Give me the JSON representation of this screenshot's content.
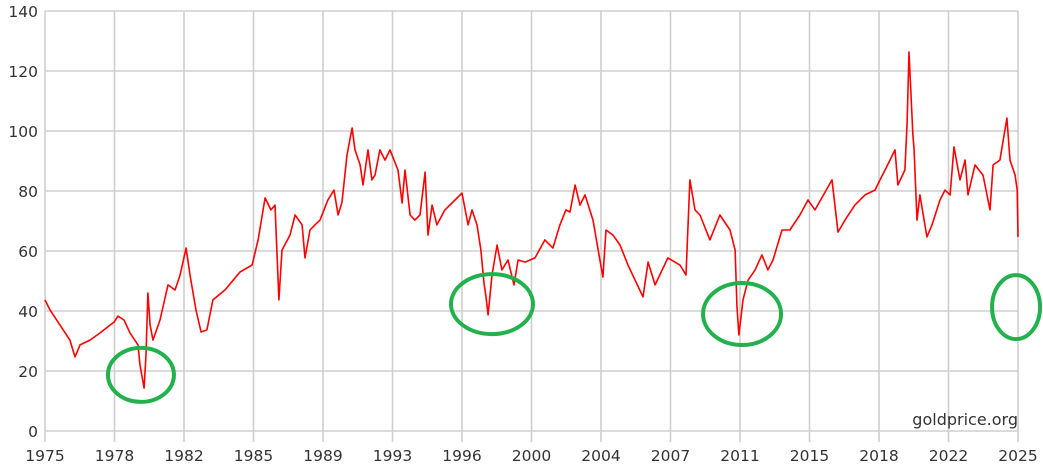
{
  "chart_data": {
    "type": "line",
    "title": "",
    "xlabel": "",
    "ylabel": "",
    "xlim": [
      1975,
      2025
    ],
    "ylim": [
      0,
      140
    ],
    "grid": true,
    "legend": "none",
    "x_tick_labels": [
      "1975",
      "1978",
      "1982",
      "1985",
      "1989",
      "1993",
      "1996",
      "2000",
      "2004",
      "2007",
      "2011",
      "2015",
      "2018",
      "2022",
      "2025"
    ],
    "y_ticks": [
      0,
      20,
      40,
      60,
      80,
      100,
      120,
      140
    ],
    "y_tick_labels": [
      "0",
      "20",
      "40",
      "60",
      "80",
      "100",
      "120",
      "140"
    ],
    "watermark": "goldprice.org",
    "colors": {
      "line": "#ff0000",
      "highlight": "#22b14c",
      "grid": "#cfcfcf"
    },
    "series": [
      {
        "color": "#ff0000",
        "points": [
          [
            1975.0,
            43.7
          ],
          [
            1975.26,
            40.3
          ],
          [
            1975.77,
            35.3
          ],
          [
            1976.28,
            30.3
          ],
          [
            1976.54,
            24.7
          ],
          [
            1976.8,
            28.7
          ],
          [
            1977.31,
            30.3
          ],
          [
            1977.83,
            32.7
          ],
          [
            1978.34,
            35.3
          ],
          [
            1978.55,
            36.3
          ],
          [
            1978.75,
            38.3
          ],
          [
            1979.06,
            37
          ],
          [
            1979.37,
            32.7
          ],
          [
            1979.78,
            28.7
          ],
          [
            1979.88,
            22
          ],
          [
            1980.09,
            14.3
          ],
          [
            1980.19,
            25.3
          ],
          [
            1980.29,
            46
          ],
          [
            1980.4,
            35.3
          ],
          [
            1980.55,
            30.3
          ],
          [
            1980.91,
            37
          ],
          [
            1981.32,
            48.7
          ],
          [
            1981.68,
            47
          ],
          [
            1981.94,
            52
          ],
          [
            1982.25,
            61
          ],
          [
            1982.45,
            52
          ],
          [
            1982.76,
            40.3
          ],
          [
            1983.02,
            33
          ],
          [
            1983.32,
            33.7
          ],
          [
            1983.63,
            43.7
          ],
          [
            1984.25,
            47
          ],
          [
            1985.02,
            53
          ],
          [
            1985.64,
            55.3
          ],
          [
            1985.95,
            63.7
          ],
          [
            1986.31,
            77.7
          ],
          [
            1986.61,
            73.7
          ],
          [
            1986.82,
            75.3
          ],
          [
            1987.02,
            43.7
          ],
          [
            1987.18,
            60.3
          ],
          [
            1987.59,
            65.3
          ],
          [
            1987.85,
            72
          ],
          [
            1988.21,
            68.7
          ],
          [
            1988.36,
            57.7
          ],
          [
            1988.62,
            67
          ],
          [
            1988.87,
            68.7
          ],
          [
            1989.13,
            70.3
          ],
          [
            1989.54,
            77
          ],
          [
            1989.85,
            80.3
          ],
          [
            1990.06,
            72
          ],
          [
            1990.26,
            76.3
          ],
          [
            1990.52,
            92
          ],
          [
            1990.78,
            101
          ],
          [
            1990.93,
            93.7
          ],
          [
            1991.19,
            88.7
          ],
          [
            1991.34,
            82
          ],
          [
            1991.6,
            93.7
          ],
          [
            1991.8,
            83.7
          ],
          [
            1991.96,
            85.3
          ],
          [
            1992.21,
            93.7
          ],
          [
            1992.47,
            90.3
          ],
          [
            1992.73,
            93.7
          ],
          [
            1993.14,
            87
          ],
          [
            1993.35,
            76
          ],
          [
            1993.5,
            87
          ],
          [
            1993.76,
            72
          ],
          [
            1994.01,
            70.3
          ],
          [
            1994.27,
            72
          ],
          [
            1994.53,
            86.3
          ],
          [
            1994.68,
            65.3
          ],
          [
            1994.89,
            75.3
          ],
          [
            1995.14,
            68.7
          ],
          [
            1995.55,
            73.7
          ],
          [
            1996.07,
            77
          ],
          [
            1996.43,
            79.3
          ],
          [
            1996.74,
            68.7
          ],
          [
            1996.94,
            73.7
          ],
          [
            1997.2,
            68.7
          ],
          [
            1997.4,
            60.3
          ],
          [
            1997.56,
            49.3
          ],
          [
            1997.66,
            44.7
          ],
          [
            1997.77,
            38.7
          ],
          [
            1997.97,
            52
          ],
          [
            1998.23,
            62
          ],
          [
            1998.48,
            53.7
          ],
          [
            1998.79,
            57
          ],
          [
            1999.1,
            48.7
          ],
          [
            1999.31,
            57
          ],
          [
            1999.67,
            56.3
          ],
          [
            2000.18,
            57.7
          ],
          [
            2000.69,
            63.7
          ],
          [
            2001.1,
            61
          ],
          [
            2001.46,
            68.7
          ],
          [
            2001.77,
            73.7
          ],
          [
            2001.98,
            73
          ],
          [
            2002.24,
            82
          ],
          [
            2002.49,
            75.3
          ],
          [
            2002.75,
            78.7
          ],
          [
            2003.16,
            70.3
          ],
          [
            2003.67,
            51.3
          ],
          [
            2003.83,
            67
          ],
          [
            2004.19,
            65.3
          ],
          [
            2004.55,
            62
          ],
          [
            2004.96,
            55.3
          ],
          [
            2005.73,
            44.7
          ],
          [
            2005.99,
            56.3
          ],
          [
            2006.35,
            48.7
          ],
          [
            2007.01,
            57.7
          ],
          [
            2007.63,
            55.3
          ],
          [
            2007.94,
            52
          ],
          [
            2008.14,
            83.7
          ],
          [
            2008.4,
            73.7
          ],
          [
            2008.66,
            72
          ],
          [
            2009.17,
            63.7
          ],
          [
            2009.68,
            72
          ],
          [
            2010.2,
            67
          ],
          [
            2010.46,
            60.3
          ],
          [
            2010.56,
            41.3
          ],
          [
            2010.66,
            32
          ],
          [
            2010.87,
            43.7
          ],
          [
            2011.13,
            50.3
          ],
          [
            2011.49,
            53.7
          ],
          [
            2011.84,
            58.7
          ],
          [
            2012.15,
            53.7
          ],
          [
            2012.41,
            57
          ],
          [
            2012.87,
            67
          ],
          [
            2013.28,
            67
          ],
          [
            2013.79,
            72
          ],
          [
            2014.21,
            77
          ],
          [
            2014.57,
            73.7
          ],
          [
            2015.44,
            83.7
          ],
          [
            2015.75,
            66.3
          ],
          [
            2016.11,
            70.3
          ],
          [
            2016.62,
            75.3
          ],
          [
            2017.14,
            78.7
          ],
          [
            2017.65,
            80.3
          ],
          [
            2017.91,
            83.7
          ],
          [
            2018.17,
            87
          ],
          [
            2018.68,
            93.7
          ],
          [
            2018.83,
            82
          ],
          [
            2019.19,
            87
          ],
          [
            2019.3,
            102.7
          ],
          [
            2019.4,
            126.3
          ],
          [
            2019.5,
            112
          ],
          [
            2019.6,
            98.7
          ],
          [
            2019.66,
            93.7
          ],
          [
            2019.81,
            70.3
          ],
          [
            2019.96,
            78.7
          ],
          [
            2020.32,
            64.7
          ],
          [
            2020.58,
            68.7
          ],
          [
            2020.99,
            77
          ],
          [
            2021.25,
            80.3
          ],
          [
            2021.51,
            78.7
          ],
          [
            2021.71,
            94.7
          ],
          [
            2022.02,
            83.7
          ],
          [
            2022.28,
            90.3
          ],
          [
            2022.43,
            78.7
          ],
          [
            2022.79,
            88.7
          ],
          [
            2023.2,
            85.3
          ],
          [
            2023.56,
            73.7
          ],
          [
            2023.72,
            88.7
          ],
          [
            2024.07,
            90.3
          ],
          [
            2024.43,
            104.3
          ],
          [
            2024.59,
            90.3
          ],
          [
            2024.85,
            85.3
          ],
          [
            2024.96,
            80.3
          ],
          [
            2025.0,
            64.7
          ]
        ]
      }
    ],
    "highlights": [
      {
        "x": 1979.93,
        "y": 18.7
      },
      {
        "x": 1997.97,
        "y": 42.3
      },
      {
        "x": 2010.82,
        "y": 39.0
      },
      {
        "x": 2024.9,
        "y": 41.3
      }
    ]
  }
}
